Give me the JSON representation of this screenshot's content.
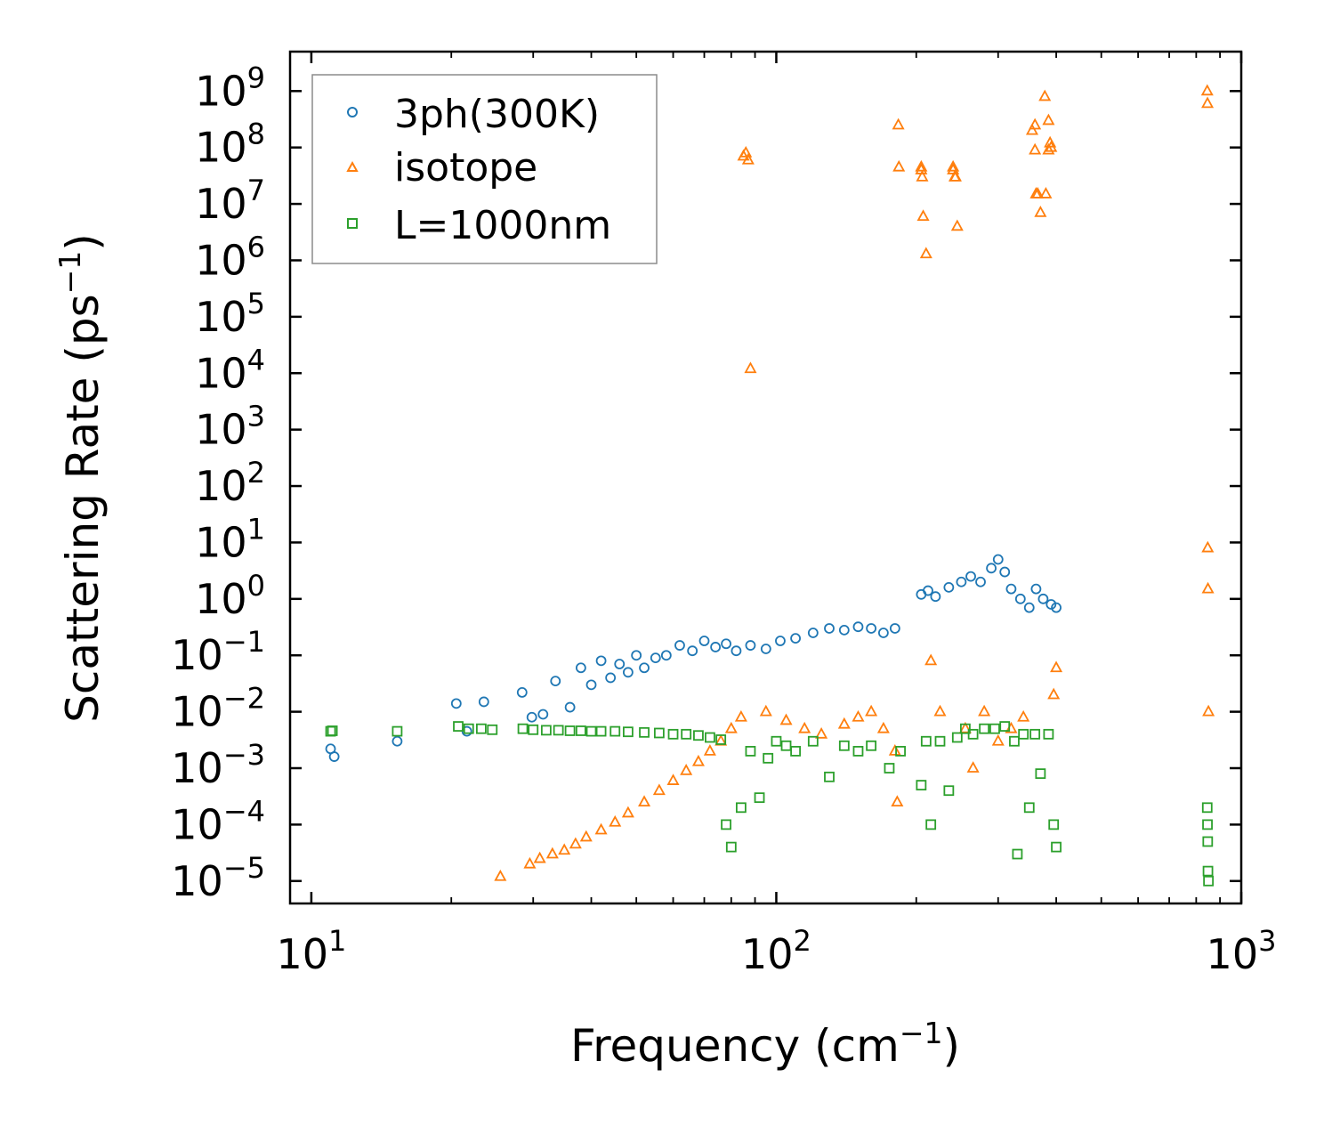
{
  "chart_data": {
    "type": "scatter",
    "title": "",
    "xlabel": "Frequency (cm",
    "xlabel_sup": "−1",
    "xlabel_end": ")",
    "ylabel": "Scattering Rate (ps",
    "ylabel_sup": "−1",
    "ylabel_end": ")",
    "xscale": "log",
    "yscale": "log",
    "xlim": [
      9,
      1000
    ],
    "ylim": [
      4e-06,
      5000000000
    ],
    "x_major_exponents": [
      1,
      2,
      3
    ],
    "y_major_exponents": [
      -5,
      -4,
      -3,
      -2,
      -1,
      0,
      1,
      2,
      3,
      4,
      5,
      6,
      7,
      8,
      9
    ],
    "tick_base": "10",
    "grid": false,
    "legend_position": "top-left",
    "series": [
      {
        "name": "3ph(300K)",
        "marker": "circle",
        "color": "#1f77b4",
        "x": [
          11,
          11.2,
          15.3,
          20.5,
          21.6,
          23.5,
          28.4,
          29.8,
          31.5,
          33.5,
          36,
          38,
          40,
          42,
          44,
          46,
          48,
          50,
          52,
          55,
          58,
          62,
          66,
          70,
          74,
          78,
          82,
          88,
          95,
          102,
          110,
          120,
          130,
          140,
          150,
          160,
          170,
          180,
          205,
          212,
          220,
          235,
          250,
          262,
          275,
          290,
          300,
          310,
          320,
          335,
          350,
          362,
          375,
          390,
          400
        ],
        "y": [
          0.0022,
          0.0016,
          0.003,
          0.014,
          0.0045,
          0.015,
          0.022,
          0.008,
          0.009,
          0.035,
          0.012,
          0.06,
          0.03,
          0.08,
          0.04,
          0.07,
          0.05,
          0.1,
          0.06,
          0.09,
          0.1,
          0.15,
          0.12,
          0.18,
          0.14,
          0.16,
          0.12,
          0.15,
          0.13,
          0.18,
          0.2,
          0.25,
          0.3,
          0.28,
          0.32,
          0.3,
          0.25,
          0.3,
          1.2,
          1.4,
          1.1,
          1.6,
          2.0,
          2.5,
          2.0,
          3.5,
          5.0,
          3.0,
          1.5,
          1.0,
          0.7,
          1.5,
          1.0,
          0.8,
          0.7
        ]
      },
      {
        "name": "isotope",
        "marker": "triangle",
        "color": "#ff7f0e",
        "x": [
          25.5,
          29.5,
          31,
          33,
          35,
          37,
          39,
          42,
          45,
          48,
          52,
          56,
          60,
          64,
          68,
          72,
          76,
          80,
          84,
          85,
          86,
          87,
          88,
          95,
          105,
          115,
          125,
          140,
          150,
          160,
          170,
          180,
          182,
          205,
          206,
          207,
          210,
          215,
          225,
          240,
          242,
          245,
          255,
          265,
          280,
          300,
          320,
          340,
          355,
          360,
          365,
          370,
          378,
          385,
          390,
          395,
          400,
          845,
          846,
          847,
          848,
          850
        ],
        "y": [
          1.2e-05,
          2e-05,
          2.5e-05,
          3e-05,
          3.5e-05,
          4.5e-05,
          6e-05,
          8e-05,
          0.00011,
          0.00016,
          0.00025,
          0.0004,
          0.0006,
          0.0009,
          0.0013,
          0.002,
          0.003,
          0.005,
          0.008,
          70000000,
          80000000,
          60000000,
          12000,
          0.01,
          0.007,
          0.005,
          0.004,
          0.006,
          0.008,
          0.01,
          0.005,
          0.002,
          0.00025,
          40000000,
          30000000,
          6000000,
          1300000,
          0.08,
          0.01,
          40000000,
          30000000,
          4000000,
          0.005,
          0.001,
          0.01,
          0.003,
          0.005,
          0.008,
          200000000,
          90000000,
          15000000,
          7000000,
          800000000,
          300000000,
          100000000,
          0.02,
          0.06,
          1000000000,
          600000000,
          8,
          1.5,
          0.01
        ],
        "extra_x": [
          183,
          183.5,
          205,
          240,
          243,
          360,
          362,
          380,
          385,
          388
        ],
        "extra_y": [
          250000000,
          45000000,
          45000000,
          45000000,
          30000000,
          250000000,
          15000000,
          15000000,
          90000000,
          120000000
        ]
      },
      {
        "name": "L=1000nm",
        "marker": "square",
        "color": "#2ca02c",
        "x": [
          11,
          11.1,
          15.3,
          20.7,
          21.8,
          23.2,
          24.5,
          28.5,
          30,
          32,
          34,
          36,
          38,
          40,
          42,
          45,
          48,
          52,
          56,
          60,
          64,
          68,
          72,
          76,
          78,
          80,
          84,
          88,
          92,
          96,
          100,
          105,
          110,
          120,
          130,
          140,
          150,
          160,
          175,
          185,
          205,
          210,
          215,
          225,
          235,
          245,
          255,
          265,
          280,
          295,
          310,
          325,
          330,
          340,
          350,
          360,
          370,
          385,
          395,
          400,
          845,
          846,
          847,
          848,
          850
        ],
        "y": [
          0.0045,
          0.0046,
          0.0045,
          0.0055,
          0.005,
          0.005,
          0.0048,
          0.005,
          0.0048,
          0.0047,
          0.0047,
          0.0046,
          0.0046,
          0.0045,
          0.0045,
          0.0045,
          0.0044,
          0.0043,
          0.0042,
          0.004,
          0.004,
          0.0038,
          0.0035,
          0.0032,
          0.0001,
          4e-05,
          0.0002,
          0.002,
          0.0003,
          0.0015,
          0.003,
          0.0025,
          0.002,
          0.003,
          0.0007,
          0.0025,
          0.002,
          0.0025,
          0.001,
          0.002,
          0.0005,
          0.003,
          0.0001,
          0.003,
          0.0004,
          0.0035,
          0.005,
          0.004,
          0.005,
          0.005,
          0.0055,
          0.003,
          3e-05,
          0.004,
          0.0002,
          0.004,
          0.0008,
          0.004,
          0.0001,
          4e-05,
          0.0002,
          0.0001,
          5e-05,
          1.5e-05,
          1e-05
        ]
      }
    ]
  }
}
